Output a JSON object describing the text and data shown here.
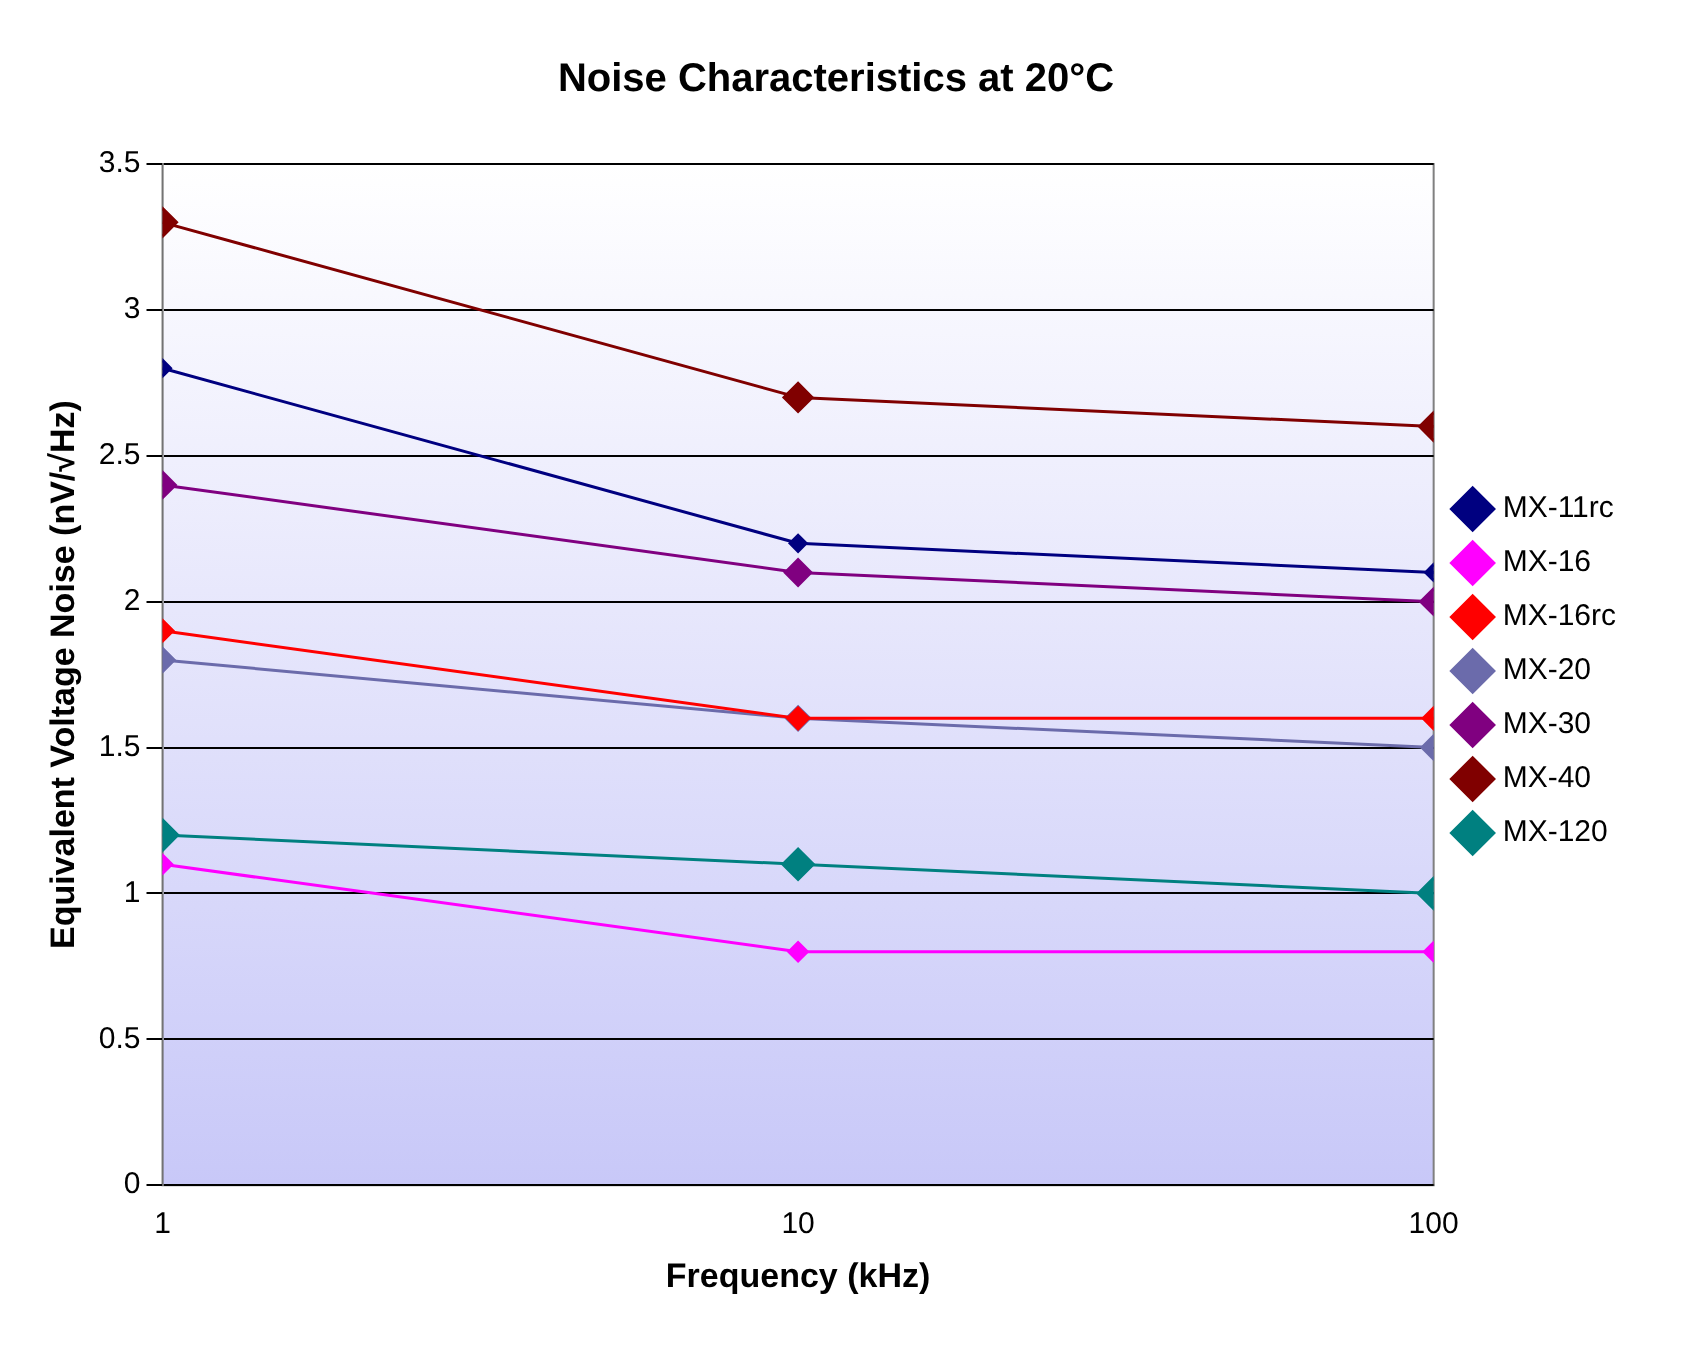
{
  "chart_data": {
    "type": "line",
    "title": "Noise Characteristics at 20°C",
    "xlabel": "Frequency (kHz)",
    "ylabel": "Equivalent Voltage Noise (nV/√Hz)",
    "x": [
      1,
      10,
      100
    ],
    "log": "x",
    "xlim": [
      1,
      100
    ],
    "xticks": [
      1,
      10,
      100
    ],
    "ylim": [
      0,
      3.5
    ],
    "yticks": [
      0,
      0.5,
      1,
      1.5,
      2,
      2.5,
      3,
      3.5
    ],
    "grid": "y",
    "legend": "right",
    "marker": "diamond",
    "line_style": "solid",
    "series": [
      {
        "name": "MX-11rc",
        "color": "#000080",
        "values": [
          2.8,
          2.2,
          2.1
        ]
      },
      {
        "name": "MX-16",
        "color": "#ff00ff",
        "values": [
          1.1,
          0.8,
          0.8
        ]
      },
      {
        "name": "MX-16rc",
        "color": "#ff0000",
        "values": [
          1.9,
          1.6,
          1.6
        ]
      },
      {
        "name": "MX-20",
        "color": "#6b6bab",
        "values": [
          1.8,
          1.6,
          1.5
        ]
      },
      {
        "name": "MX-30",
        "color": "#800080",
        "values": [
          2.4,
          2.1,
          2.0
        ]
      },
      {
        "name": "MX-40",
        "color": "#800000",
        "values": [
          3.3,
          2.7,
          2.6
        ]
      },
      {
        "name": "MX-120",
        "color": "#008080",
        "values": [
          1.2,
          1.1,
          1.0
        ]
      }
    ]
  }
}
